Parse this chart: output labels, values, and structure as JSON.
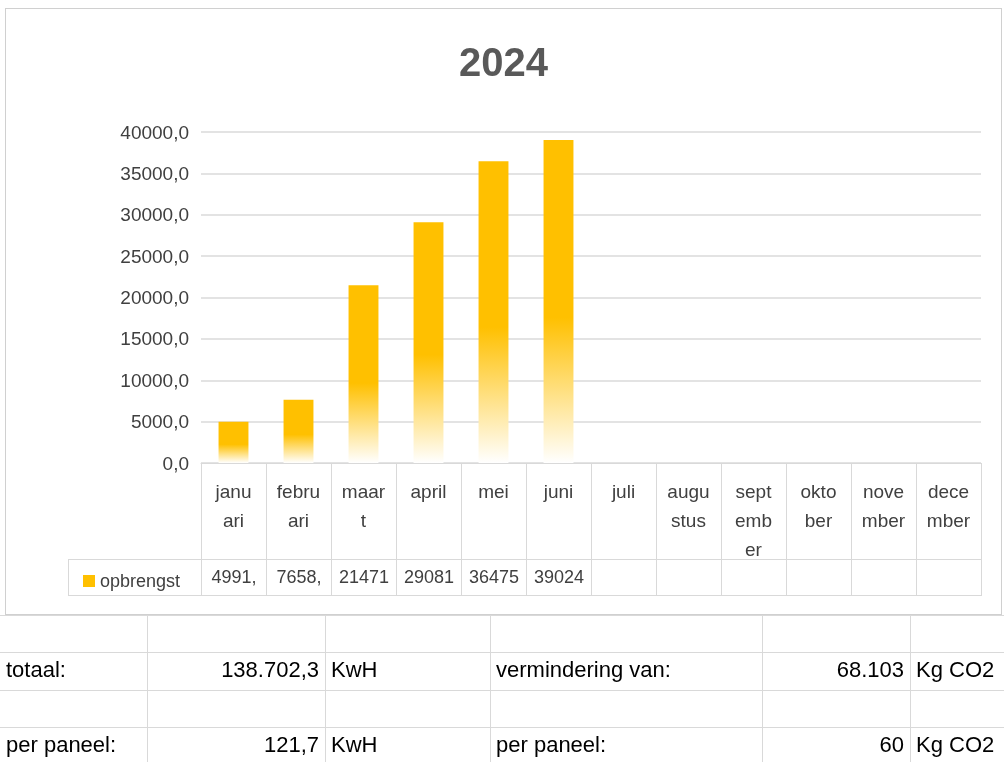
{
  "chart_data": {
    "type": "bar",
    "title": "2024",
    "categories": [
      "januari",
      "februari",
      "maart",
      "april",
      "mei",
      "juni",
      "juli",
      "augustus",
      "september",
      "oktober",
      "november",
      "december"
    ],
    "series": [
      {
        "name": "opbrengst",
        "color": "#ffc000",
        "values": [
          4991,
          7658,
          21471,
          29081,
          36475,
          39024,
          null,
          null,
          null,
          null,
          null,
          null
        ],
        "value_labels": [
          "4991,",
          "7658,",
          "21471",
          "29081",
          "36475",
          "39024",
          null,
          null,
          null,
          null,
          null,
          null
        ]
      }
    ],
    "ylim": [
      0,
      40000
    ],
    "yticks": [
      {
        "value": 0,
        "label": "0,0"
      },
      {
        "value": 5000,
        "label": "5000,0"
      },
      {
        "value": 10000,
        "label": "10000,0"
      },
      {
        "value": 15000,
        "label": "15000,0"
      },
      {
        "value": 20000,
        "label": "20000,0"
      },
      {
        "value": 25000,
        "label": "25000,0"
      },
      {
        "value": 30000,
        "label": "30000,0"
      },
      {
        "value": 35000,
        "label": "35000,0"
      },
      {
        "value": 40000,
        "label": "40000,0"
      }
    ],
    "grid": "y",
    "legend": "bottom",
    "annotations": [
      "totaal:",
      "138.702,3",
      "KwH",
      "vermindering van:",
      "68.103",
      "Kg CO2",
      "per paneel:",
      "121,7",
      "KwH",
      "per paneel:",
      "60",
      "Kg CO2"
    ]
  }
}
